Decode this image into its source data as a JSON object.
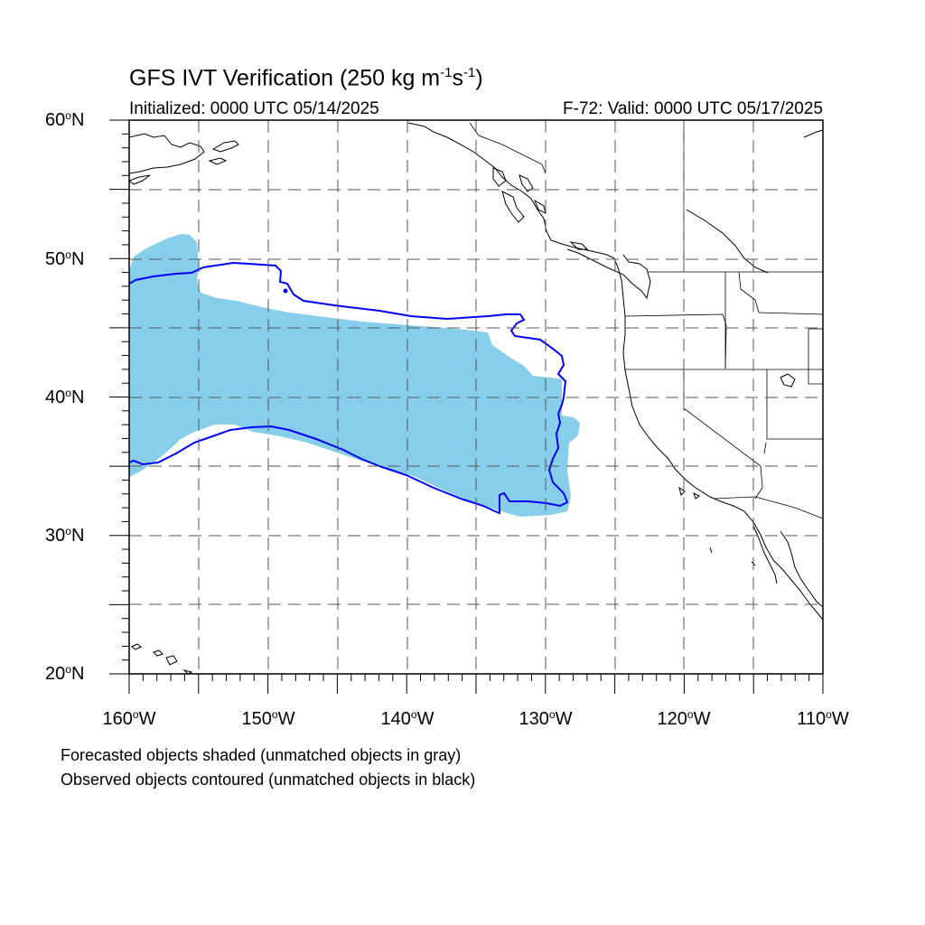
{
  "map": {
    "title_main": "GFS IVT Verification (250 kg m",
    "title_sup1": "-1",
    "title_mid": "s",
    "title_sup2": "-1",
    "title_end": ")",
    "subtitle_left": "Initialized: 0000 UTC 05/14/2025",
    "subtitle_right": "F-72: Valid: 0000 UTC 05/17/2025",
    "projection": "cylindrical equidistant",
    "grid": "dashed",
    "extent": {
      "lon": [
        -160,
        -110
      ],
      "lat": [
        20,
        60
      ]
    },
    "lat_labels": [
      {
        "num": "60",
        "hem": "N"
      },
      {
        "num": "50",
        "hem": "N"
      },
      {
        "num": "40",
        "hem": "N"
      },
      {
        "num": "30",
        "hem": "N"
      },
      {
        "num": "20",
        "hem": "N"
      }
    ],
    "lon_labels": [
      {
        "num": "160",
        "hem": "W"
      },
      {
        "num": "150",
        "hem": "W"
      },
      {
        "num": "140",
        "hem": "W"
      },
      {
        "num": "130",
        "hem": "W"
      },
      {
        "num": "120",
        "hem": "W"
      },
      {
        "num": "110",
        "hem": "W"
      }
    ],
    "degree_symbol": "o",
    "footnote1": "Forecasted objects shaded (unmatched objects in gray)",
    "footnote2": "Observed objects contoured (unmatched objects in black)",
    "colors": {
      "forecast_fill": "#87ceeb",
      "observed_contour": "#0000ff",
      "coastline": "#000000",
      "grid": "#555555"
    }
  }
}
